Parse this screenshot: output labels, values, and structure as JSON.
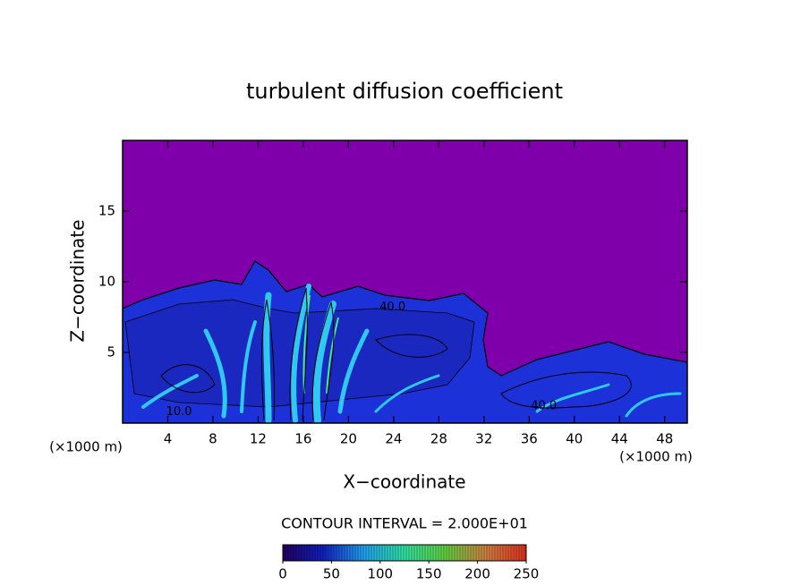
{
  "chart_data": {
    "type": "contour",
    "title": "turbulent diffusion coefficient",
    "x_label": "X−coordinate",
    "y_label": "Z−coordinate",
    "axis_unit": "(×1000 m)",
    "contour_interval_label": "CONTOUR INTERVAL = 2.000E+01",
    "xlim": [
      0,
      50
    ],
    "ylim": [
      0,
      20
    ],
    "xticks": [
      4,
      8,
      12,
      16,
      20,
      24,
      28,
      32,
      36,
      40,
      44,
      48
    ],
    "yticks": [
      5,
      10,
      15
    ],
    "background_color": "#7f00aa",
    "contour_labels": [
      {
        "text": "40.0",
        "x": 23.9,
        "y": 8.2
      },
      {
        "text": "10.0",
        "x": 5.0,
        "y": 0.8
      },
      {
        "text": "40.0",
        "x": 37.3,
        "y": 1.2
      }
    ],
    "colorbar": {
      "lim": [
        0,
        250
      ],
      "ticks": [
        0,
        50,
        100,
        150,
        200,
        250
      ],
      "colors": [
        "#200060",
        "#1020c0",
        "#20a0f0",
        "#30e0a0",
        "#60d040",
        "#d08040",
        "#e03020"
      ]
    }
  }
}
